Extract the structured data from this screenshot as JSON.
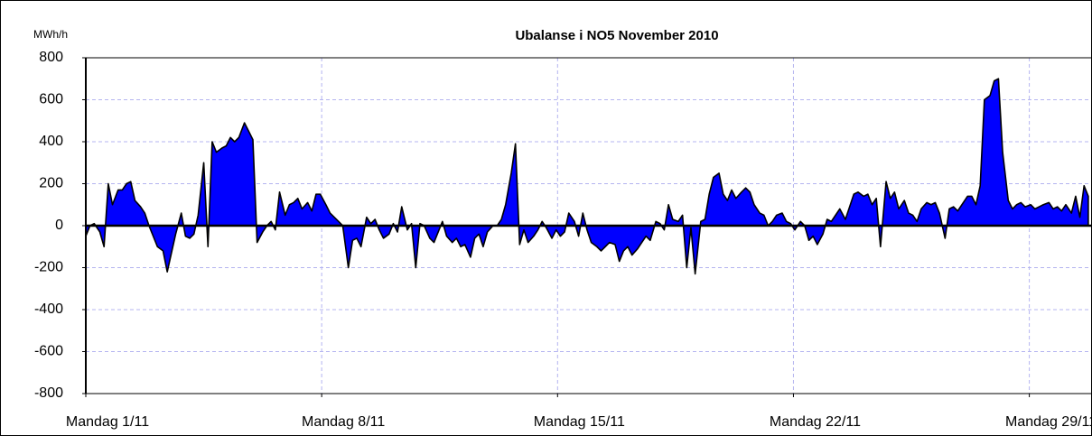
{
  "chart_data": {
    "type": "area",
    "title": "Ubalanse i NO5 November 2010",
    "y_label": "MWh/h",
    "x": [
      0,
      3,
      6,
      10,
      13,
      16,
      19,
      23,
      26,
      29,
      32,
      35,
      39,
      42,
      45,
      48,
      51,
      55,
      58,
      61,
      64,
      68,
      71,
      74,
      77,
      80,
      84,
      87,
      90,
      93,
      97,
      100,
      103,
      106,
      109,
      113,
      116,
      119,
      122,
      126,
      129,
      132,
      135,
      138,
      142,
      145,
      148,
      151,
      154,
      158,
      161,
      164,
      167,
      171,
      174,
      177,
      180,
      183,
      187,
      190,
      193,
      196,
      200,
      203,
      206,
      209,
      212,
      216,
      219,
      222,
      225,
      229,
      232,
      235,
      238,
      241,
      245,
      248,
      251,
      254,
      257,
      261,
      264,
      267,
      270,
      274,
      277,
      280,
      283,
      286,
      290,
      293,
      296,
      299,
      303,
      306,
      309,
      312,
      315,
      319,
      322,
      325,
      328,
      332,
      335,
      338,
      341,
      344,
      348,
      351,
      354,
      357,
      360,
      364,
      367,
      370,
      373,
      377,
      380,
      383,
      386,
      389,
      393,
      396,
      399,
      402,
      406,
      409,
      412,
      415,
      418,
      422,
      425,
      428,
      431,
      434,
      438,
      441,
      444,
      447,
      451,
      454,
      457,
      460,
      463,
      467,
      470,
      473,
      476,
      480,
      483,
      486,
      489,
      492,
      496,
      499,
      502,
      505,
      509,
      512,
      515,
      518,
      521,
      525,
      528,
      531,
      534,
      537,
      541,
      544,
      547,
      550,
      554,
      557,
      560,
      563,
      566,
      570,
      573,
      576,
      579,
      583,
      586,
      589,
      592,
      595,
      599,
      602,
      605,
      608,
      612,
      615,
      618,
      621,
      624,
      628,
      631,
      634,
      637,
      640,
      644,
      647,
      650,
      653,
      657,
      660,
      663,
      666,
      669,
      673,
      676,
      679,
      682,
      686,
      689,
      692,
      695,
      698,
      702,
      705,
      708,
      711,
      714
    ],
    "series": [
      {
        "name": "Ubalanse",
        "color": "#0000ff",
        "values": [
          -50,
          0,
          10,
          -30,
          -100,
          200,
          100,
          170,
          170,
          200,
          210,
          120,
          90,
          60,
          0,
          -50,
          -100,
          -120,
          -220,
          -130,
          -40,
          60,
          -50,
          -60,
          -40,
          50,
          300,
          -100,
          400,
          350,
          370,
          380,
          420,
          400,
          420,
          490,
          450,
          410,
          -80,
          -30,
          0,
          20,
          -20,
          160,
          50,
          100,
          110,
          130,
          80,
          110,
          70,
          150,
          150,
          100,
          60,
          40,
          20,
          0,
          -200,
          -70,
          -60,
          -100,
          40,
          10,
          30,
          -20,
          -60,
          -40,
          10,
          -30,
          90,
          -20,
          10,
          -200,
          10,
          0,
          -60,
          -80,
          -30,
          20,
          -50,
          -80,
          -60,
          -100,
          -90,
          -150,
          -60,
          -40,
          -100,
          -30,
          0,
          0,
          30,
          100,
          250,
          390,
          -90,
          -20,
          -80,
          -50,
          -20,
          20,
          -10,
          -60,
          -20,
          -50,
          -30,
          60,
          20,
          -50,
          60,
          -20,
          -80,
          -100,
          -120,
          -100,
          -80,
          -90,
          -170,
          -120,
          -100,
          -140,
          -110,
          -80,
          -50,
          -70,
          20,
          10,
          -20,
          100,
          30,
          20,
          50,
          -200,
          -10,
          -230,
          20,
          30,
          150,
          230,
          250,
          150,
          120,
          170,
          130,
          160,
          180,
          160,
          100,
          60,
          50,
          0,
          20,
          50,
          60,
          20,
          10,
          -20,
          20,
          0,
          -70,
          -50,
          -90,
          -40,
          30,
          20,
          50,
          80,
          30,
          90,
          150,
          160,
          140,
          150,
          100,
          130,
          -100,
          210,
          130,
          160,
          80,
          120,
          60,
          50,
          20,
          80,
          110,
          100,
          110,
          60,
          -60,
          80,
          90,
          70,
          100,
          140,
          140,
          100,
          190,
          600,
          620,
          690,
          700,
          350,
          120,
          80,
          100,
          110,
          90,
          100,
          80,
          90,
          100,
          110,
          80,
          90,
          70,
          100,
          60,
          140,
          40,
          190,
          140
        ]
      }
    ],
    "xlim": [
      0,
      716
    ],
    "xticks": [
      {
        "value": 0,
        "label": "Mandag  1/11"
      },
      {
        "value": 168,
        "label": "Mandag  8/11"
      },
      {
        "value": 336,
        "label": "Mandag  15/11"
      },
      {
        "value": 504,
        "label": "Mandag 22/11"
      },
      {
        "value": 672,
        "label": "Mandag 29/11"
      }
    ],
    "ylim": [
      -800,
      800
    ],
    "yticks": [
      -800,
      -600,
      -400,
      -200,
      0,
      200,
      400,
      600,
      800
    ],
    "grid": true
  }
}
